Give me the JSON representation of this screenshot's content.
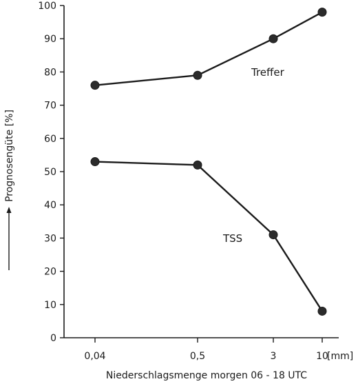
{
  "chart_data": {
    "type": "line",
    "title": "",
    "xlabel": "Niederschlagsmenge morgen 06 - 18 UTC",
    "ylabel": "Prognosengüte [%]",
    "x_unit": "[mm]",
    "categories": [
      "0,04",
      "0,5",
      "3",
      "10"
    ],
    "ylim": [
      0,
      100
    ],
    "yticks": [
      0,
      10,
      20,
      30,
      40,
      50,
      60,
      70,
      80,
      90,
      100
    ],
    "grid": false,
    "series": [
      {
        "name": "Treffer",
        "values": [
          76,
          79,
          90,
          98
        ]
      },
      {
        "name": "TSS",
        "values": [
          53,
          52,
          31,
          8
        ]
      }
    ],
    "colors": {
      "line": "#1a1a1a",
      "marker": "#2b2b2b"
    }
  }
}
